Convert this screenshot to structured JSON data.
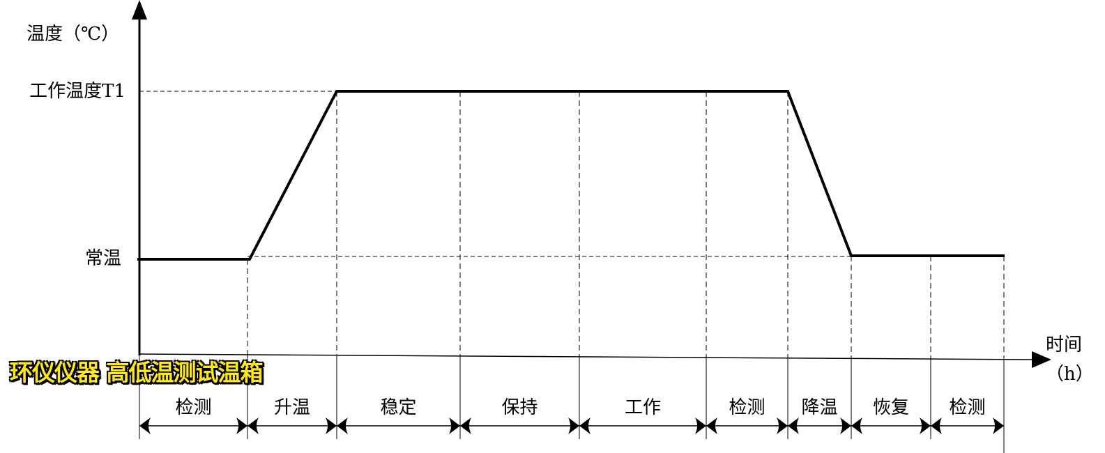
{
  "y_axis": {
    "label": "温度（℃）",
    "levels": {
      "working": "工作温度T1",
      "ambient": "常温"
    }
  },
  "x_axis": {
    "label_line1": "时间",
    "label_line2": "（h）"
  },
  "phases": [
    {
      "label": "检测"
    },
    {
      "label": "升温"
    },
    {
      "label": "稳定"
    },
    {
      "label": "保持"
    },
    {
      "label": "工作"
    },
    {
      "label": "检测"
    },
    {
      "label": "降温"
    },
    {
      "label": "恢复"
    },
    {
      "label": "检测"
    }
  ],
  "watermark": "环仪仪器 高低温测试温箱"
}
